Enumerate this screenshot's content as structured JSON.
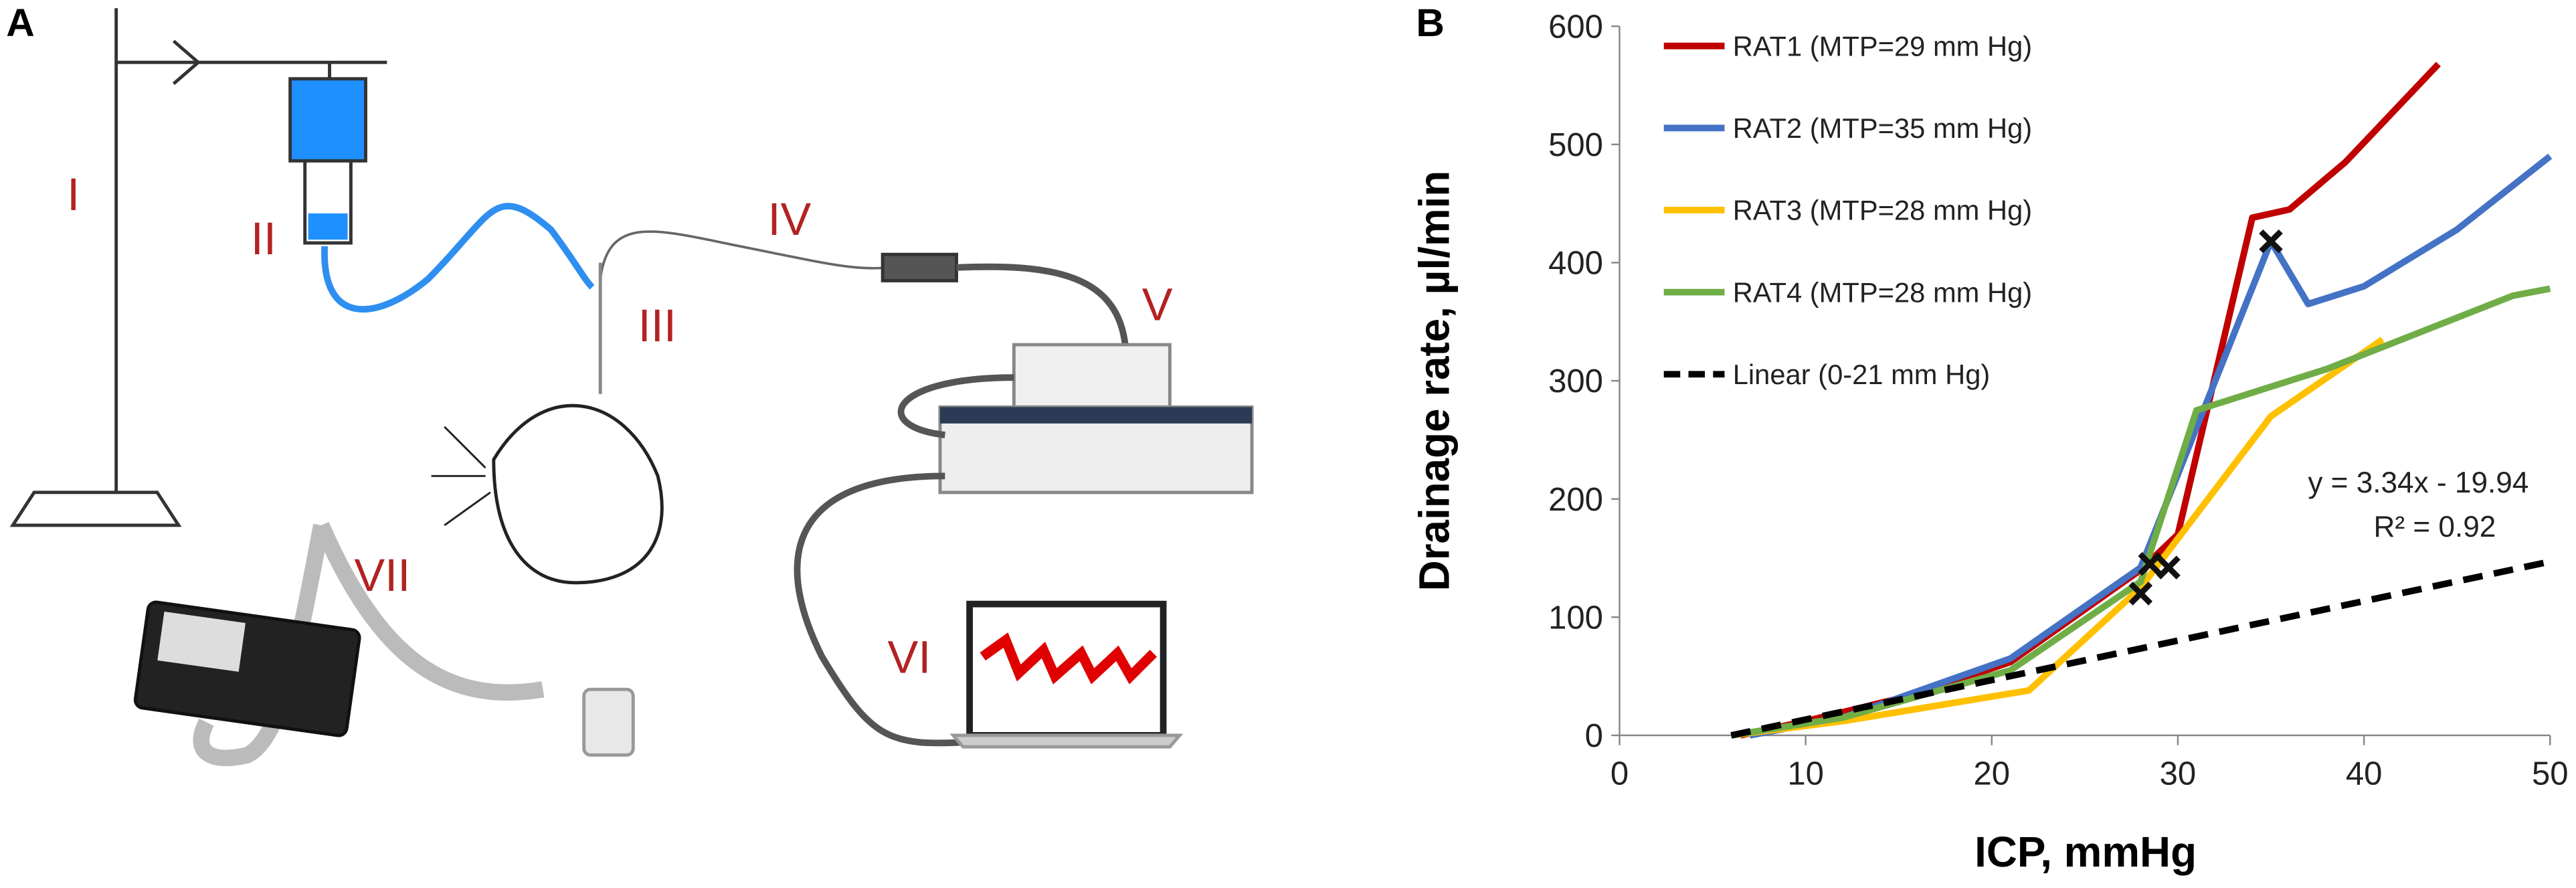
{
  "panel_a": {
    "label": "A",
    "parts": [
      "I",
      "II",
      "III",
      "IV",
      "V",
      "VI",
      "VII"
    ]
  },
  "chart_data": {
    "type": "line",
    "panel_label": "B",
    "xlabel": "ICP, mmHg",
    "ylabel": "Drainage rate, µl/min",
    "xlim": [
      0,
      50
    ],
    "xticks": [
      0,
      10,
      20,
      30,
      40,
      50
    ],
    "ylim": [
      0,
      600
    ],
    "yticks": [
      0,
      100,
      200,
      300,
      400,
      500,
      600
    ],
    "series": [
      {
        "name": "RAT1 (MTP=29 mm Hg)",
        "color": "#c00000",
        "linestyle": "solid",
        "x": [
          6.5,
          10,
          16,
          21,
          28,
          30,
          34,
          36,
          39,
          44
        ],
        "values": [
          0,
          12,
          35,
          62,
          140,
          170,
          438,
          445,
          485,
          568
        ]
      },
      {
        "name": "RAT2 (MTP=35 mm Hg)",
        "color": "#4472c4",
        "linestyle": "solid",
        "x": [
          7,
          12,
          21,
          28,
          35,
          37,
          40,
          45,
          50
        ],
        "values": [
          0,
          15,
          65,
          142,
          418,
          365,
          380,
          428,
          490
        ]
      },
      {
        "name": "RAT3 (MTP=28 mm Hg)",
        "color": "#ffc000",
        "linestyle": "solid",
        "x": [
          6,
          12,
          22,
          28,
          35,
          41
        ],
        "values": [
          0,
          12,
          38,
          125,
          270,
          335
        ]
      },
      {
        "name": "RAT4 (MTP=28 mm Hg)",
        "color": "#70ad47",
        "linestyle": "solid",
        "x": [
          6,
          12,
          21,
          28,
          31,
          38,
          48,
          50
        ],
        "values": [
          0,
          15,
          55,
          130,
          275,
          310,
          372,
          378
        ]
      },
      {
        "name": "Linear  (0-21 mm Hg)",
        "color": "#000000",
        "linestyle": "dashed",
        "x": [
          6,
          50
        ],
        "values": [
          0,
          147
        ]
      }
    ],
    "markers": {
      "x": [
        28,
        28.5,
        29.5,
        35
      ],
      "y": [
        120,
        145,
        142,
        418
      ]
    },
    "annotations": [
      "y = 3.34x - 19.94",
      "R² = 0.92"
    ]
  }
}
